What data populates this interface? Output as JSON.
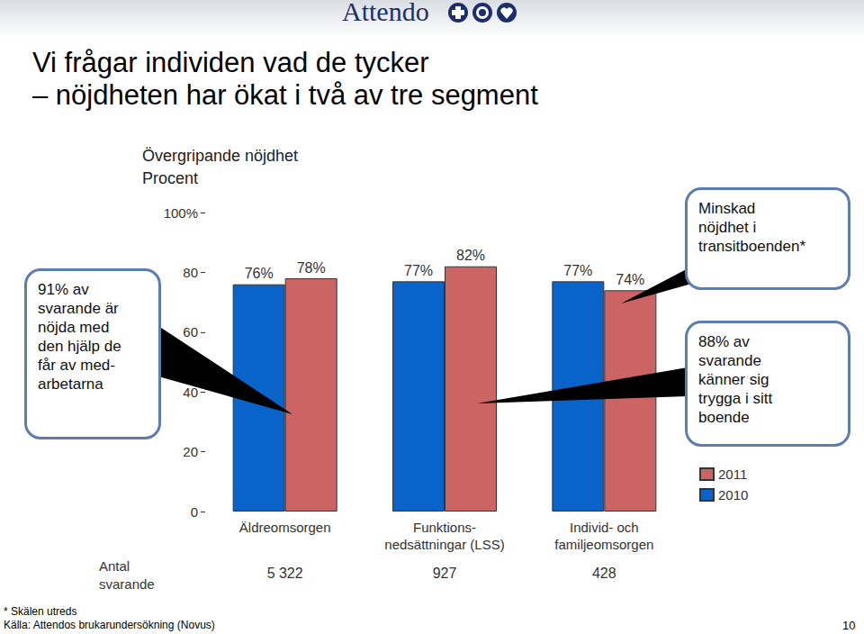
{
  "header": {
    "logo": "Attendo",
    "title": [
      "Vi frågar individen vad de tycker",
      "– nöjdheten har ökat i två av tre segment"
    ]
  },
  "chart_data": {
    "type": "bar",
    "title": "Övergripande nöjdhet",
    "subtitle": "Procent",
    "categories": [
      "Äldreomsorgen",
      "Funktions-\nnedsättningar (LSS)",
      "Individ- och\nfamiljeomsorgen"
    ],
    "series": [
      {
        "name": "2010",
        "color": "#0a63c9",
        "values": [
          76,
          77,
          77
        ],
        "value_labels": [
          "76%",
          "77%",
          "77%"
        ]
      },
      {
        "name": "2011",
        "color": "#cc6464",
        "values": [
          78,
          82,
          74
        ],
        "value_labels": [
          "78%",
          "82%",
          "74%"
        ]
      }
    ],
    "ylim": [
      0,
      100
    ],
    "yticks": [
      0,
      20,
      40,
      60,
      80,
      {
        "value": 100,
        "label": "100%"
      }
    ],
    "grid": false,
    "legend": "right",
    "data_labels": true,
    "respondents": {
      "label": "Antal svarande",
      "values": [
        {
          "value": 5322,
          "label": "5 322"
        },
        {
          "value": 927,
          "label": "927"
        },
        {
          "value": 428,
          "label": "428"
        }
      ]
    }
  },
  "callouts": {
    "left": [
      "91% av",
      "svarande är",
      "nöjda med",
      "den hjälp de",
      "får av med-",
      "arbetarna"
    ],
    "right_top": [
      "Minskad",
      "nöjdhet i",
      "transitboenden*"
    ],
    "right_bottom": [
      "88% av",
      "svarande",
      "känner sig",
      "trygga i sitt",
      "boende"
    ]
  },
  "footer": {
    "notes": [
      "* Skälen utreds",
      "Källa: Attendos brukarundersökning (Novus)"
    ],
    "page": "10"
  }
}
